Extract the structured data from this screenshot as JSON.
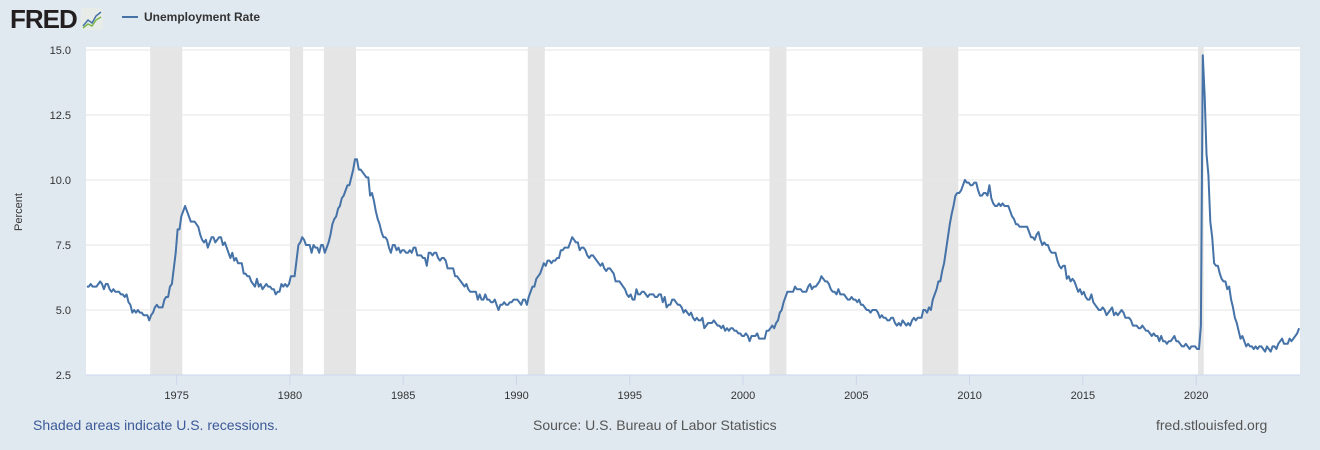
{
  "header": {
    "logo": "FRED",
    "legend_label": "Unemployment Rate"
  },
  "footer": {
    "note": "Shaded areas indicate U.S. recessions.",
    "source": "Source: U.S. Bureau of Labor Statistics",
    "site": "fred.stlouisfed.org"
  },
  "colors": {
    "line": "#4572a7",
    "recession": "#e5e5e5",
    "background": "#e1e9f0",
    "plot": "#ffffff"
  },
  "chart_data": {
    "type": "line",
    "title": "",
    "ylabel": "Percent",
    "xlabel": "",
    "legend": "top-left",
    "grid": true,
    "ylim": [
      2.5,
      15.0
    ],
    "xlim": [
      "1971-01",
      "2024-07"
    ],
    "yticks": [
      "2.5",
      "5.0",
      "7.5",
      "10.0",
      "12.5",
      "15.0"
    ],
    "xticks": [
      "1975",
      "1980",
      "1985",
      "1990",
      "1995",
      "2000",
      "2005",
      "2010",
      "2015",
      "2020"
    ],
    "frequency": "monthly",
    "x_start": "1971-01",
    "recessions": [
      [
        "1973-11",
        "1975-03"
      ],
      [
        "1980-01",
        "1980-07"
      ],
      [
        "1981-07",
        "1982-11"
      ],
      [
        "1990-07",
        "1991-03"
      ],
      [
        "2001-03",
        "2001-11"
      ],
      [
        "2007-12",
        "2009-06"
      ],
      [
        "2020-02",
        "2020-04"
      ]
    ],
    "series": [
      {
        "name": "Unemployment Rate",
        "values": [
          5.9,
          5.9,
          6.0,
          5.9,
          5.9,
          5.9,
          6.0,
          6.1,
          6.0,
          5.8,
          6.0,
          6.0,
          5.8,
          5.7,
          5.8,
          5.7,
          5.7,
          5.7,
          5.6,
          5.6,
          5.5,
          5.6,
          5.3,
          5.2,
          4.9,
          5.0,
          4.9,
          5.0,
          4.9,
          4.9,
          4.8,
          4.8,
          4.8,
          4.6,
          4.8,
          4.9,
          5.1,
          5.2,
          5.1,
          5.1,
          5.1,
          5.4,
          5.5,
          5.5,
          5.9,
          6.0,
          6.6,
          7.2,
          8.1,
          8.1,
          8.6,
          8.8,
          9.0,
          8.8,
          8.6,
          8.4,
          8.4,
          8.4,
          8.3,
          8.2,
          7.9,
          7.7,
          7.6,
          7.7,
          7.4,
          7.6,
          7.8,
          7.8,
          7.6,
          7.7,
          7.8,
          7.8,
          7.5,
          7.6,
          7.4,
          7.2,
          7.0,
          7.2,
          6.9,
          7.0,
          6.8,
          6.8,
          6.8,
          6.4,
          6.4,
          6.3,
          6.3,
          6.1,
          6.0,
          5.9,
          6.2,
          5.9,
          6.0,
          5.8,
          5.9,
          6.0,
          5.9,
          5.9,
          5.8,
          5.8,
          5.6,
          5.7,
          5.7,
          6.0,
          5.9,
          6.0,
          5.9,
          6.0,
          6.3,
          6.3,
          6.3,
          6.9,
          7.5,
          7.6,
          7.8,
          7.7,
          7.5,
          7.5,
          7.5,
          7.2,
          7.5,
          7.4,
          7.4,
          7.2,
          7.5,
          7.5,
          7.2,
          7.4,
          7.6,
          7.9,
          8.3,
          8.5,
          8.6,
          8.9,
          9.0,
          9.3,
          9.4,
          9.6,
          9.8,
          9.8,
          10.1,
          10.4,
          10.8,
          10.8,
          10.4,
          10.4,
          10.3,
          10.2,
          10.1,
          10.1,
          9.4,
          9.5,
          9.2,
          8.8,
          8.5,
          8.3,
          8.0,
          7.8,
          7.8,
          7.7,
          7.4,
          7.2,
          7.5,
          7.5,
          7.3,
          7.4,
          7.2,
          7.3,
          7.3,
          7.2,
          7.2,
          7.3,
          7.2,
          7.4,
          7.4,
          7.1,
          7.1,
          7.1,
          7.0,
          7.0,
          6.7,
          7.2,
          7.2,
          7.1,
          7.2,
          7.2,
          7.0,
          6.9,
          7.0,
          7.0,
          6.9,
          6.6,
          6.6,
          6.6,
          6.6,
          6.3,
          6.3,
          6.2,
          6.1,
          6.0,
          5.9,
          6.0,
          5.8,
          5.7,
          5.7,
          5.7,
          5.7,
          5.4,
          5.6,
          5.4,
          5.4,
          5.6,
          5.4,
          5.4,
          5.3,
          5.3,
          5.4,
          5.2,
          5.0,
          5.2,
          5.2,
          5.3,
          5.2,
          5.2,
          5.3,
          5.3,
          5.4,
          5.4,
          5.4,
          5.3,
          5.2,
          5.4,
          5.4,
          5.2,
          5.5,
          5.7,
          5.9,
          5.9,
          6.2,
          6.3,
          6.4,
          6.6,
          6.8,
          6.7,
          6.9,
          6.9,
          6.8,
          6.9,
          6.9,
          7.0,
          7.0,
          7.3,
          7.3,
          7.4,
          7.4,
          7.4,
          7.6,
          7.8,
          7.7,
          7.6,
          7.6,
          7.3,
          7.4,
          7.4,
          7.3,
          7.1,
          7.0,
          7.1,
          7.1,
          7.0,
          6.9,
          6.8,
          6.7,
          6.8,
          6.6,
          6.5,
          6.6,
          6.6,
          6.5,
          6.4,
          6.1,
          6.1,
          6.1,
          6.0,
          5.9,
          5.8,
          5.6,
          5.5,
          5.6,
          5.4,
          5.4,
          5.8,
          5.6,
          5.6,
          5.7,
          5.7,
          5.6,
          5.5,
          5.6,
          5.6,
          5.6,
          5.5,
          5.5,
          5.6,
          5.6,
          5.3,
          5.5,
          5.1,
          5.2,
          5.2,
          5.4,
          5.4,
          5.3,
          5.2,
          5.2,
          5.1,
          4.9,
          5.0,
          4.9,
          4.8,
          4.9,
          4.7,
          4.6,
          4.7,
          4.6,
          4.6,
          4.7,
          4.3,
          4.4,
          4.5,
          4.5,
          4.5,
          4.6,
          4.5,
          4.4,
          4.4,
          4.3,
          4.4,
          4.2,
          4.3,
          4.2,
          4.3,
          4.3,
          4.2,
          4.2,
          4.1,
          4.1,
          4.0,
          4.0,
          4.1,
          4.0,
          3.8,
          4.0,
          4.0,
          4.0,
          4.1,
          3.9,
          3.9,
          3.9,
          3.9,
          4.2,
          4.2,
          4.3,
          4.4,
          4.3,
          4.5,
          4.6,
          4.9,
          5.0,
          5.3,
          5.5,
          5.7,
          5.7,
          5.7,
          5.7,
          5.9,
          5.8,
          5.8,
          5.8,
          5.7,
          5.7,
          5.7,
          5.9,
          6.0,
          5.8,
          5.9,
          5.9,
          6.0,
          6.1,
          6.3,
          6.2,
          6.1,
          6.1,
          6.0,
          5.8,
          5.7,
          5.7,
          5.6,
          5.8,
          5.6,
          5.6,
          5.6,
          5.5,
          5.4,
          5.4,
          5.5,
          5.4,
          5.4,
          5.3,
          5.4,
          5.2,
          5.2,
          5.1,
          5.0,
          5.0,
          4.9,
          5.0,
          5.0,
          5.0,
          4.9,
          4.7,
          4.8,
          4.7,
          4.7,
          4.6,
          4.6,
          4.7,
          4.7,
          4.5,
          4.4,
          4.5,
          4.4,
          4.6,
          4.5,
          4.4,
          4.5,
          4.4,
          4.6,
          4.7,
          4.6,
          4.7,
          4.7,
          4.7,
          5.0,
          5.0,
          4.9,
          5.1,
          5.0,
          5.4,
          5.6,
          5.8,
          6.1,
          6.1,
          6.5,
          6.8,
          7.3,
          7.8,
          8.3,
          8.7,
          9.0,
          9.4,
          9.5,
          9.5,
          9.6,
          9.8,
          10.0,
          9.9,
          9.9,
          9.8,
          9.8,
          9.9,
          9.9,
          9.6,
          9.4,
          9.4,
          9.5,
          9.5,
          9.4,
          9.8,
          9.3,
          9.1,
          9.0,
          9.0,
          9.1,
          9.0,
          9.1,
          9.0,
          9.0,
          9.0,
          8.8,
          8.6,
          8.5,
          8.3,
          8.3,
          8.2,
          8.2,
          8.2,
          8.2,
          8.2,
          8.0,
          7.8,
          7.8,
          7.7,
          7.9,
          8.0,
          7.7,
          7.5,
          7.6,
          7.5,
          7.5,
          7.3,
          7.2,
          7.2,
          7.2,
          6.9,
          6.7,
          6.6,
          6.7,
          6.7,
          6.2,
          6.3,
          6.1,
          6.2,
          6.1,
          5.9,
          5.7,
          5.8,
          5.6,
          5.7,
          5.5,
          5.4,
          5.4,
          5.6,
          5.3,
          5.2,
          5.1,
          5.0,
          5.0,
          5.1,
          5.0,
          4.8,
          4.9,
          5.0,
          5.1,
          4.8,
          4.9,
          4.8,
          4.9,
          5.0,
          4.9,
          4.7,
          4.7,
          4.7,
          4.6,
          4.4,
          4.4,
          4.4,
          4.3,
          4.3,
          4.4,
          4.3,
          4.2,
          4.2,
          4.1,
          4.0,
          4.1,
          4.0,
          4.0,
          3.8,
          4.0,
          3.8,
          3.8,
          3.7,
          3.8,
          3.8,
          3.9,
          4.0,
          3.8,
          3.8,
          3.7,
          3.6,
          3.6,
          3.7,
          3.6,
          3.5,
          3.6,
          3.6,
          3.6,
          3.5,
          3.5,
          4.4,
          14.8,
          13.2,
          11.0,
          10.2,
          8.4,
          7.8,
          6.8,
          6.7,
          6.7,
          6.4,
          6.2,
          6.1,
          6.1,
          5.8,
          5.9,
          5.4,
          5.1,
          4.7,
          4.5,
          4.2,
          3.9,
          4.0,
          3.8,
          3.6,
          3.7,
          3.6,
          3.6,
          3.5,
          3.6,
          3.5,
          3.6,
          3.6,
          3.5,
          3.4,
          3.6,
          3.5,
          3.4,
          3.6,
          3.6,
          3.5,
          3.7,
          3.8,
          3.9,
          3.7,
          3.7,
          3.7,
          3.9,
          3.8,
          3.9,
          4.0,
          4.1,
          4.3
        ]
      }
    ]
  }
}
